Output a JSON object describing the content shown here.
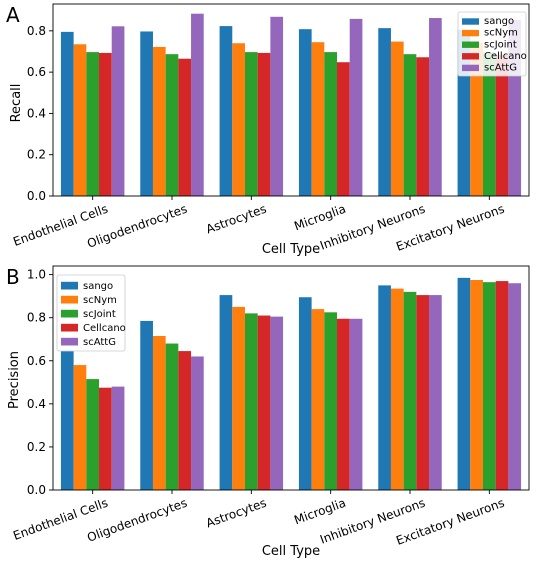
{
  "colors": {
    "sango": "#1f77b4",
    "scNym": "#ff7f0e",
    "scJoint": "#2ca02c",
    "Cellcano": "#d62728",
    "scAttG": "#9467bd"
  },
  "chart_data": [
    {
      "type": "bar",
      "panel_label": "A",
      "xlabel": "Cell Type",
      "ylabel": "Recall",
      "ylim": [
        0,
        0.93
      ],
      "yticks": [
        "0.0",
        "0.2",
        "0.4",
        "0.6",
        "0.8"
      ],
      "categories": [
        "Endothelial Cells",
        "Oligodendrocytes",
        "Astrocytes",
        "Microglia",
        "Inhibitory Neurons",
        "Excitatory Neurons"
      ],
      "legend_position": "top-right",
      "grid": false,
      "series": [
        {
          "name": "sango",
          "values": [
            0.795,
            0.797,
            0.823,
            0.808,
            0.813,
            0.805
          ]
        },
        {
          "name": "scNym",
          "values": [
            0.735,
            0.722,
            0.74,
            0.745,
            0.748,
            0.743
          ]
        },
        {
          "name": "scJoint",
          "values": [
            0.697,
            0.687,
            0.697,
            0.697,
            0.687,
            0.695
          ]
        },
        {
          "name": "Cellcano",
          "values": [
            0.693,
            0.665,
            0.693,
            0.648,
            0.672,
            0.683
          ]
        },
        {
          "name": "scAttG",
          "values": [
            0.822,
            0.883,
            0.868,
            0.858,
            0.862,
            0.852
          ]
        }
      ]
    },
    {
      "type": "bar",
      "panel_label": "B",
      "xlabel": "Cell Type",
      "ylabel": "Precision",
      "ylim": [
        0,
        1.04
      ],
      "yticks": [
        "0.0",
        "0.2",
        "0.4",
        "0.6",
        "0.8",
        "1.0"
      ],
      "categories": [
        "Endothelial Cells",
        "Oligodendrocytes",
        "Astrocytes",
        "Microglia",
        "Inhibitory Neurons",
        "Excitatory Neurons"
      ],
      "legend_position": "top-left",
      "grid": false,
      "series": [
        {
          "name": "sango",
          "values": [
            0.645,
            0.785,
            0.905,
            0.895,
            0.95,
            0.985
          ]
        },
        {
          "name": "scNym",
          "values": [
            0.58,
            0.715,
            0.85,
            0.84,
            0.935,
            0.975
          ]
        },
        {
          "name": "scJoint",
          "values": [
            0.515,
            0.68,
            0.82,
            0.825,
            0.92,
            0.965
          ]
        },
        {
          "name": "Cellcano",
          "values": [
            0.475,
            0.645,
            0.81,
            0.795,
            0.905,
            0.97
          ]
        },
        {
          "name": "scAttG",
          "values": [
            0.48,
            0.62,
            0.805,
            0.795,
            0.905,
            0.96
          ]
        }
      ]
    }
  ]
}
